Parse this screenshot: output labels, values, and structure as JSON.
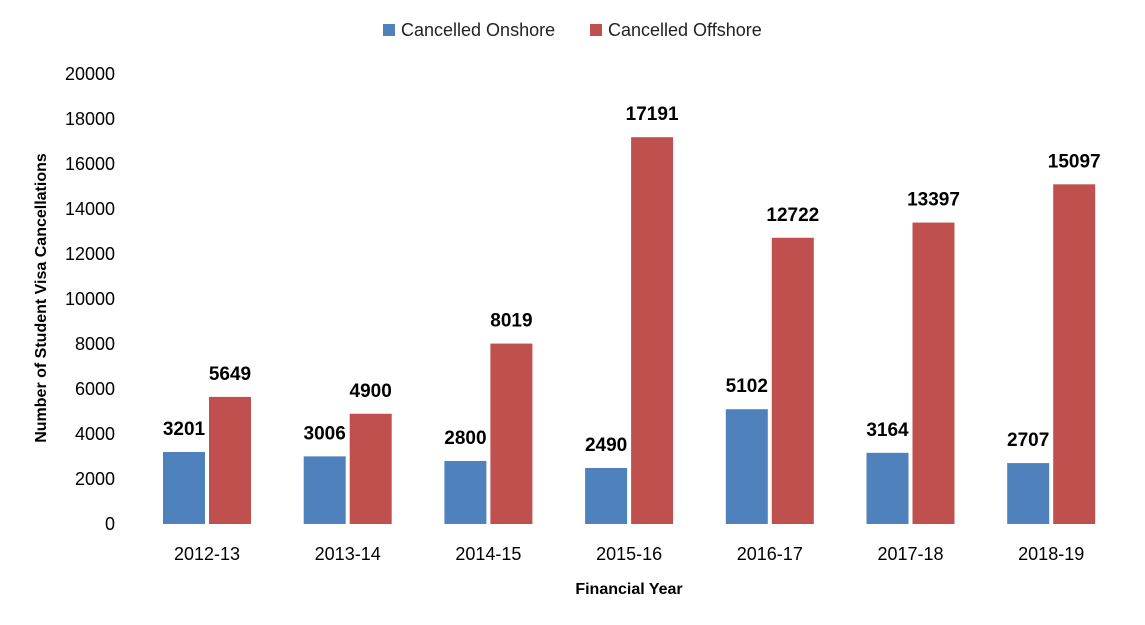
{
  "chart_data": {
    "type": "bar",
    "title": "",
    "xlabel": "Financial Year",
    "ylabel": "Number of Student Visa Cancellations",
    "categories": [
      "2012-13",
      "2013-14",
      "2014-15",
      "2015-16",
      "2016-17",
      "2017-18",
      "2018-19"
    ],
    "series": [
      {
        "name": "Cancelled Onshore",
        "color": "#4F81BD",
        "values": [
          3201,
          3006,
          2800,
          2490,
          5102,
          3164,
          2707
        ]
      },
      {
        "name": "Cancelled Offshore",
        "color": "#C0504D",
        "values": [
          5649,
          4900,
          8019,
          17191,
          12722,
          13397,
          15097
        ]
      }
    ],
    "ylim": [
      0,
      20000
    ],
    "yticks": [
      0,
      2000,
      4000,
      6000,
      8000,
      10000,
      12000,
      14000,
      16000,
      18000,
      20000
    ],
    "grid": false,
    "legend": "top",
    "data_labels": true
  }
}
